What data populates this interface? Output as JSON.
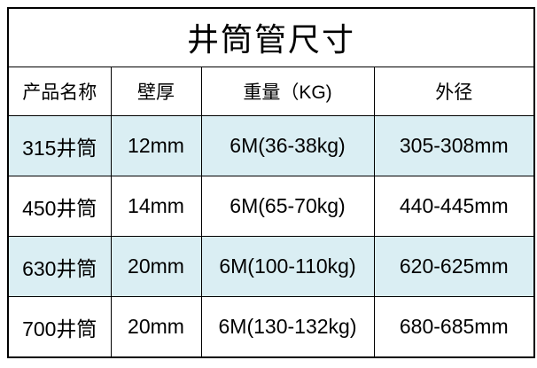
{
  "chart_data": {
    "type": "table",
    "title": "井筒管尺寸",
    "columns": [
      "产品名称",
      "壁厚",
      "重量（KG)",
      "外径"
    ],
    "rows": [
      [
        "315井筒",
        "12mm",
        "6M(36-38kg)",
        "305-308mm"
      ],
      [
        "450井筒",
        "14mm",
        "6M(65-70kg)",
        "440-445mm"
      ],
      [
        "630井筒",
        "20mm",
        "6M(100-110kg)",
        "620-625mm"
      ],
      [
        "700井筒",
        "20mm",
        "6M(130-132kg)",
        "680-685mm"
      ]
    ],
    "layout": {
      "striped_row_indexes": [
        0,
        2
      ],
      "legend": "none",
      "grid": "full-borders"
    }
  },
  "colors": {
    "stripe": "#daeef3",
    "border": "#000000",
    "background": "#ffffff",
    "text": "#000000"
  }
}
